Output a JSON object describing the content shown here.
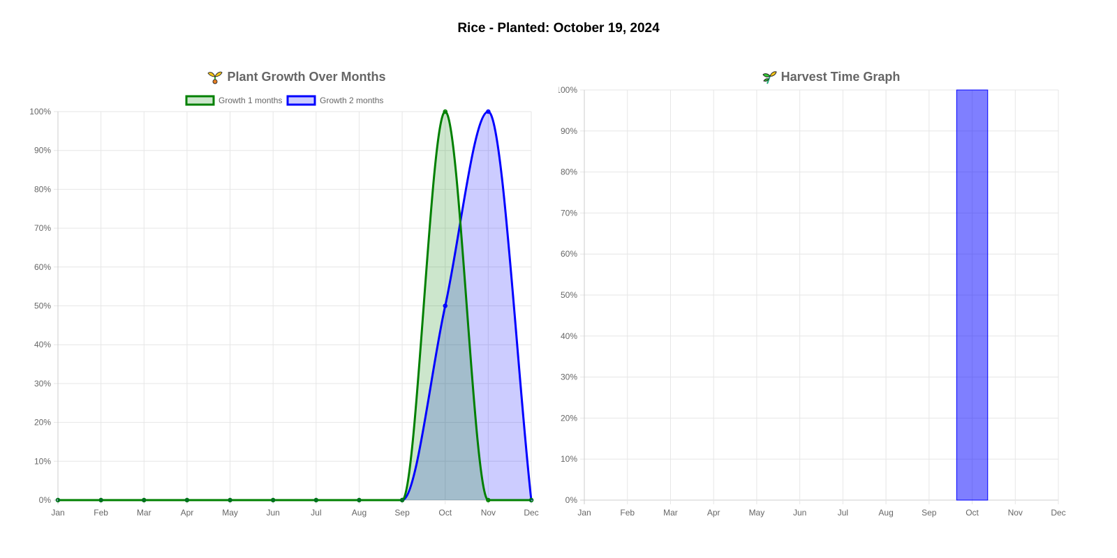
{
  "page": {
    "title": "Rice - Planted: October 19, 2024"
  },
  "chart_data": [
    {
      "type": "area",
      "title": "Plant Growth Over Months",
      "title_icon": "sprout-icon",
      "categories": [
        "Jan",
        "Feb",
        "Mar",
        "Apr",
        "May",
        "Jun",
        "Jul",
        "Aug",
        "Sep",
        "Oct",
        "Nov",
        "Dec"
      ],
      "series": [
        {
          "name": "Growth 1 months",
          "values": [
            0,
            0,
            0,
            0,
            0,
            0,
            0,
            0,
            0,
            100,
            0,
            0
          ],
          "color": "#008000",
          "fill": "rgba(0,128,0,0.2)"
        },
        {
          "name": "Growth 2 months",
          "values": [
            0,
            0,
            0,
            0,
            0,
            0,
            0,
            0,
            0,
            50,
            100,
            0
          ],
          "color": "#0000ff",
          "fill": "rgba(0,0,255,0.2)"
        }
      ],
      "ylim": [
        0,
        100
      ],
      "ytick_labels": [
        "0%",
        "10%",
        "20%",
        "30%",
        "40%",
        "50%",
        "60%",
        "70%",
        "80%",
        "90%",
        "100%"
      ],
      "grid": true,
      "legend": "top"
    },
    {
      "type": "bar",
      "title": "Harvest Time Graph",
      "title_icon": "wheat-icon",
      "categories": [
        "Jan",
        "Feb",
        "Mar",
        "Apr",
        "May",
        "Jun",
        "Jul",
        "Aug",
        "Sep",
        "Oct",
        "Nov",
        "Dec"
      ],
      "values": [
        0,
        0,
        0,
        0,
        0,
        0,
        0,
        0,
        0,
        100,
        0,
        0
      ],
      "color": "rgba(0,0,255,0.5)",
      "border_color": "#0000ff",
      "ylim": [
        0,
        100
      ],
      "ytick_labels": [
        "0%",
        "10%",
        "20%",
        "30%",
        "40%",
        "50%",
        "60%",
        "70%",
        "80%",
        "90%",
        "100%"
      ],
      "grid": true
    }
  ]
}
